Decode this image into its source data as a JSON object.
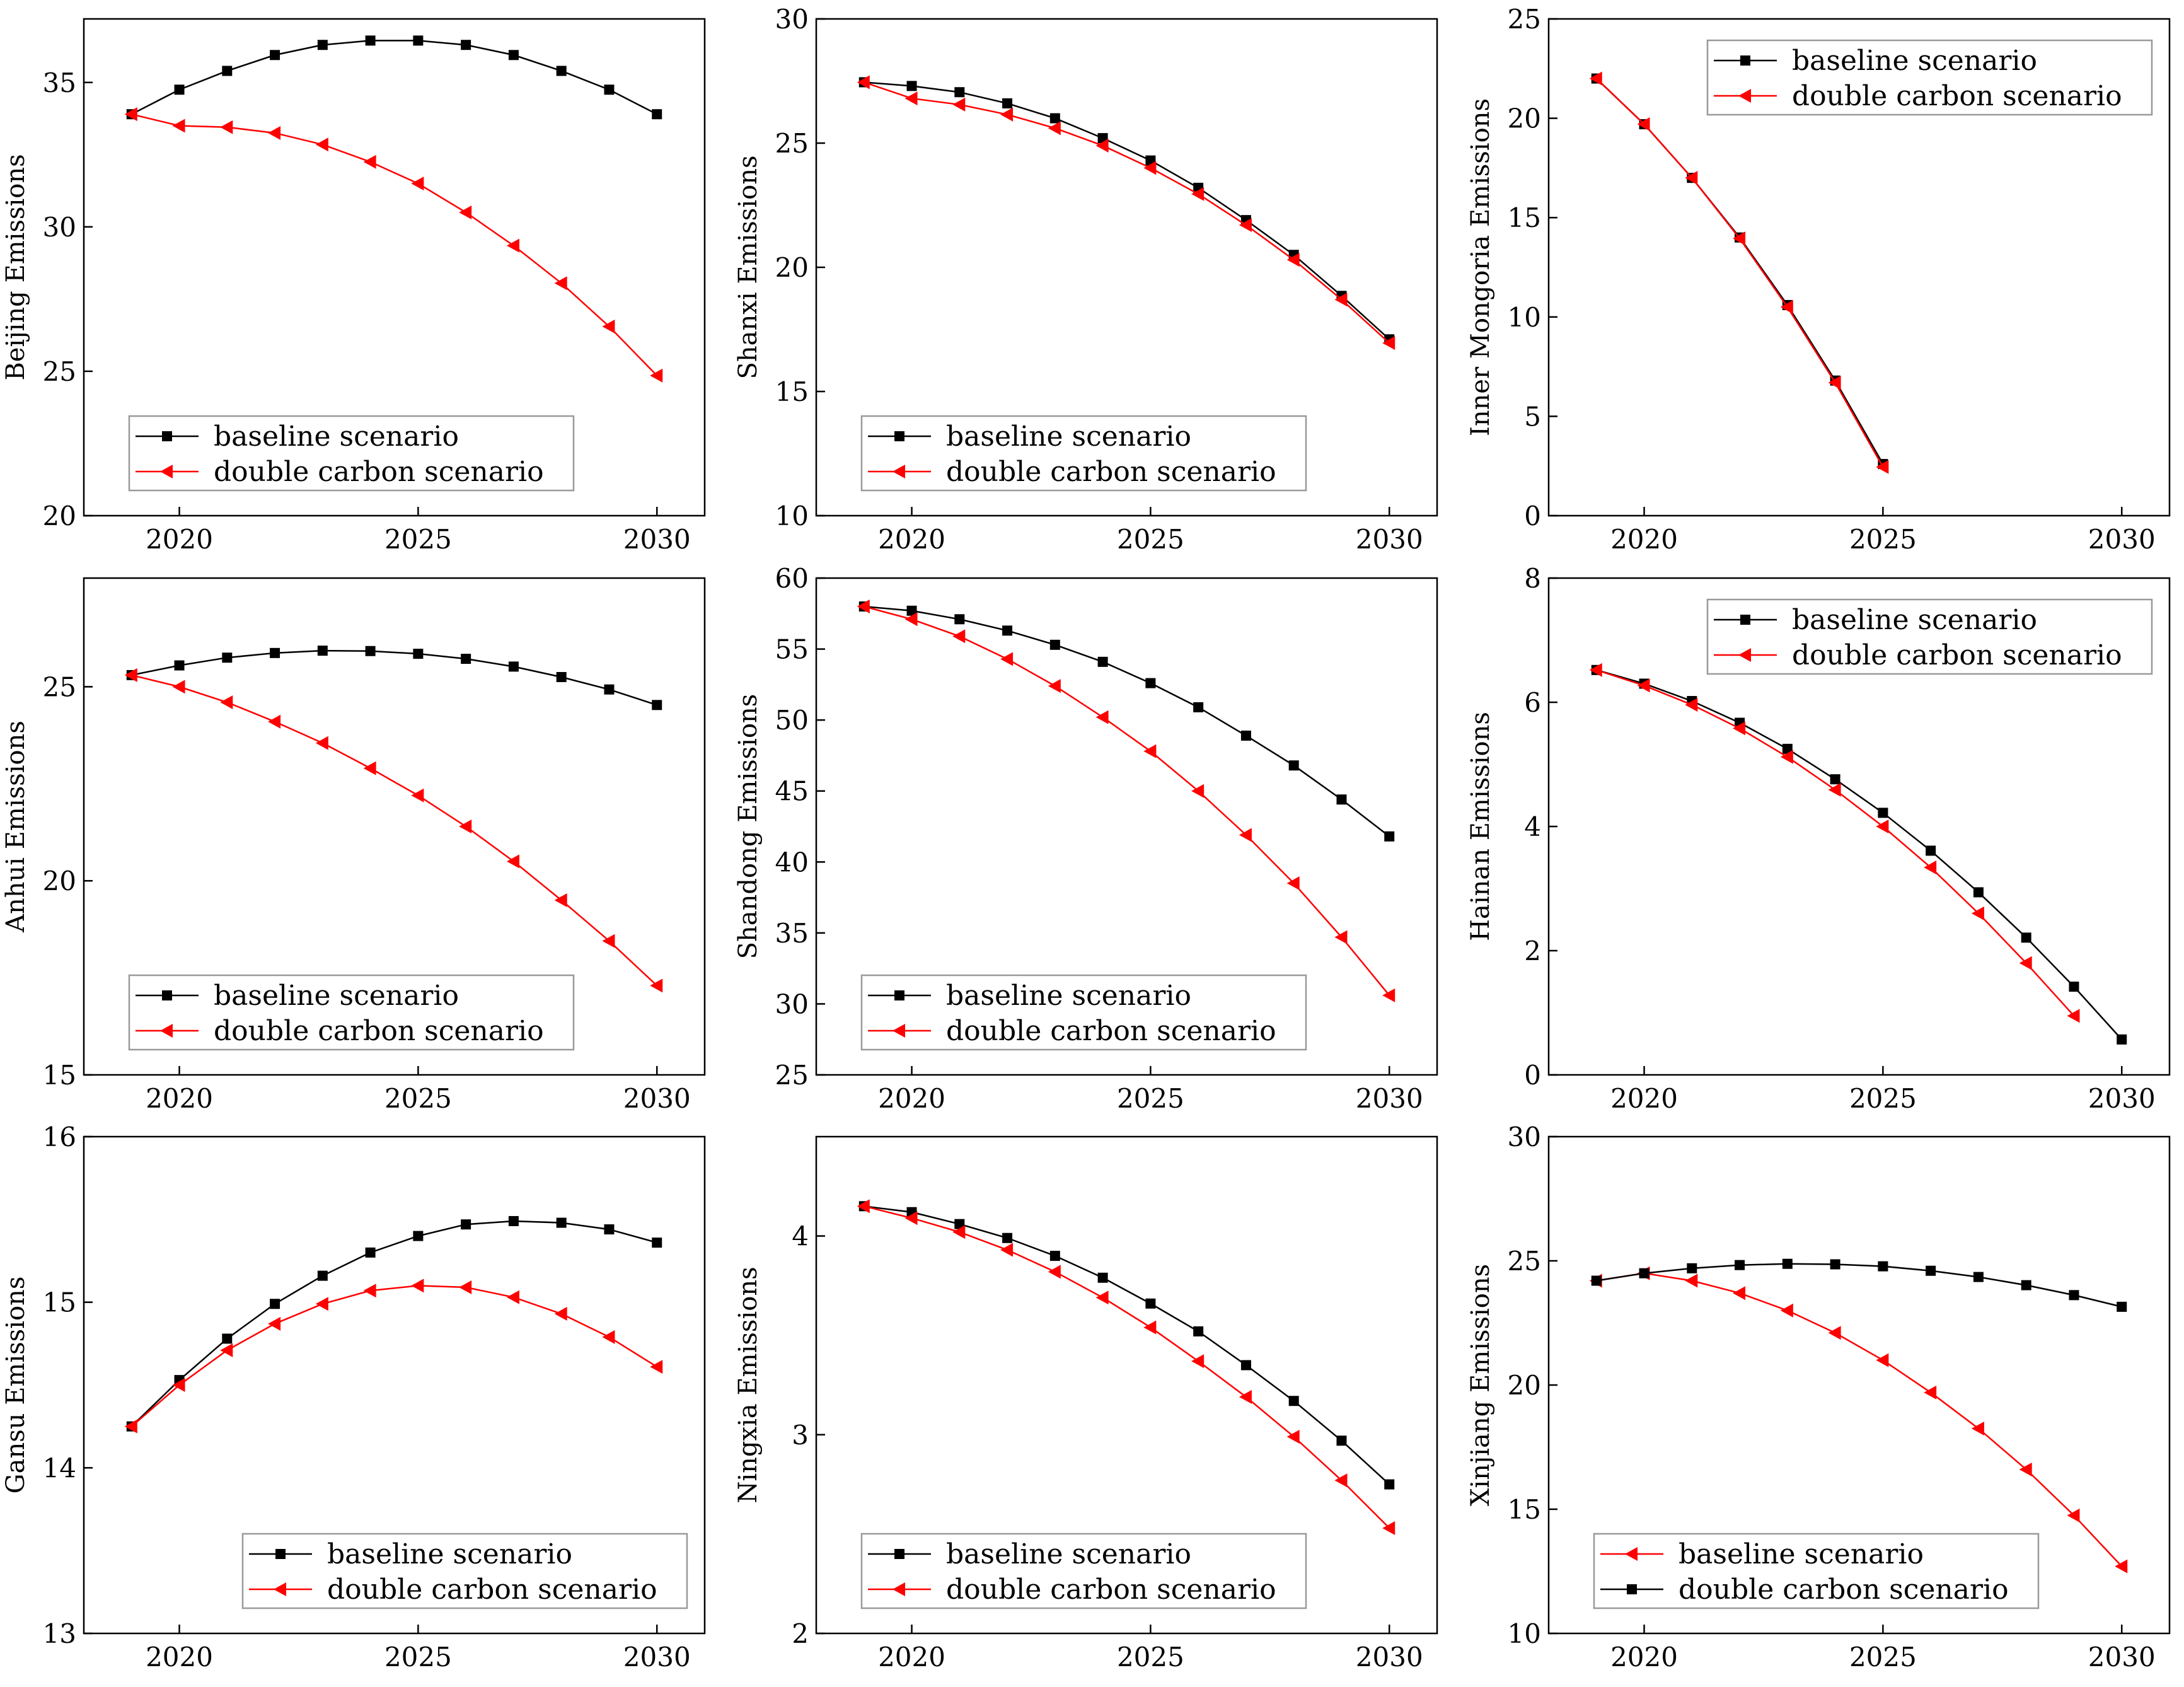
{
  "colors": {
    "black_series": "#000000",
    "red_series": "#ff0000",
    "axis": "#000000",
    "legend_border": "#999999"
  },
  "chart_data": [
    {
      "type": "line",
      "ylabel": "Beijing Emissions",
      "ylim": [
        20,
        37.2
      ],
      "yticks": [
        20,
        25,
        30,
        35
      ],
      "xlim": [
        2018,
        2031
      ],
      "xticks": [
        2020,
        2025,
        2030
      ],
      "legend": "bottom-left",
      "series": [
        {
          "name": "baseline scenario",
          "color": "#000000",
          "marker": "square",
          "x": [
            2019,
            2020,
            2021,
            2022,
            2023,
            2024,
            2025,
            2026,
            2027,
            2028,
            2029,
            2030
          ],
          "y": [
            33.9,
            34.75,
            35.4,
            35.95,
            36.3,
            36.45,
            36.45,
            36.3,
            35.95,
            35.4,
            34.75,
            33.9
          ]
        },
        {
          "name": "double carbon scenario",
          "color": "#ff0000",
          "marker": "triangle-left",
          "x": [
            2019,
            2020,
            2021,
            2022,
            2023,
            2024,
            2025,
            2026,
            2027,
            2028,
            2029,
            2030
          ],
          "y": [
            33.9,
            33.5,
            33.45,
            33.25,
            32.85,
            32.25,
            31.5,
            30.5,
            29.35,
            28.05,
            26.55,
            24.85
          ]
        }
      ]
    },
    {
      "type": "line",
      "ylabel": "Shanxi Emissions",
      "ylim": [
        10,
        30
      ],
      "yticks": [
        10,
        15,
        20,
        25,
        30
      ],
      "xlim": [
        2018,
        2031
      ],
      "xticks": [
        2020,
        2025,
        2030
      ],
      "legend": "bottom-left",
      "series": [
        {
          "name": "baseline scenario",
          "color": "#000000",
          "marker": "square",
          "x": [
            2019,
            2020,
            2021,
            2022,
            2023,
            2024,
            2025,
            2026,
            2027,
            2028,
            2029,
            2030
          ],
          "y": [
            27.45,
            27.3,
            27.05,
            26.6,
            26.0,
            25.2,
            24.3,
            23.2,
            21.9,
            20.5,
            18.85,
            17.1
          ]
        },
        {
          "name": "double carbon scenario",
          "color": "#ff0000",
          "marker": "triangle-left",
          "x": [
            2019,
            2020,
            2021,
            2022,
            2023,
            2024,
            2025,
            2026,
            2027,
            2028,
            2029,
            2030
          ],
          "y": [
            27.45,
            26.8,
            26.55,
            26.15,
            25.6,
            24.9,
            24.0,
            22.95,
            21.7,
            20.3,
            18.7,
            16.95
          ]
        }
      ]
    },
    {
      "type": "line",
      "ylabel": "Inner Mongoria Emissions",
      "ylim": [
        0,
        25
      ],
      "yticks": [
        0,
        5,
        10,
        15,
        20,
        25
      ],
      "xlim": [
        2018,
        2031
      ],
      "xticks": [
        2020,
        2025,
        2030
      ],
      "legend": "top-right",
      "series": [
        {
          "name": "baseline scenario",
          "color": "#000000",
          "marker": "square",
          "x": [
            2019,
            2020,
            2021,
            2022,
            2023,
            2024,
            2025
          ],
          "y": [
            22.0,
            19.7,
            17.0,
            14.0,
            10.6,
            6.8,
            2.6
          ]
        },
        {
          "name": "double carbon scenario",
          "color": "#ff0000",
          "marker": "triangle-left",
          "x": [
            2019,
            2020,
            2021,
            2022,
            2023,
            2024,
            2025
          ],
          "y": [
            22.0,
            19.7,
            17.0,
            13.95,
            10.5,
            6.7,
            2.45
          ]
        }
      ]
    },
    {
      "type": "line",
      "ylabel": "Anhui Emissions",
      "ylim": [
        15,
        27.8
      ],
      "yticks": [
        15,
        20,
        25
      ],
      "xlim": [
        2018,
        2031
      ],
      "xticks": [
        2020,
        2025,
        2030
      ],
      "legend": "bottom-left",
      "series": [
        {
          "name": "baseline scenario",
          "color": "#000000",
          "marker": "square",
          "x": [
            2019,
            2020,
            2021,
            2022,
            2023,
            2024,
            2025,
            2026,
            2027,
            2028,
            2029,
            2030
          ],
          "y": [
            25.3,
            25.55,
            25.75,
            25.87,
            25.93,
            25.92,
            25.85,
            25.72,
            25.52,
            25.25,
            24.93,
            24.53
          ]
        },
        {
          "name": "double carbon scenario",
          "color": "#ff0000",
          "marker": "triangle-left",
          "x": [
            2019,
            2020,
            2021,
            2022,
            2023,
            2024,
            2025,
            2026,
            2027,
            2028,
            2029,
            2030
          ],
          "y": [
            25.3,
            25.0,
            24.6,
            24.1,
            23.55,
            22.9,
            22.2,
            21.4,
            20.5,
            19.5,
            18.45,
            17.3
          ]
        }
      ]
    },
    {
      "type": "line",
      "ylabel": "Shandong Emissions",
      "ylim": [
        25,
        60
      ],
      "yticks": [
        25,
        30,
        35,
        40,
        45,
        50,
        55,
        60
      ],
      "xlim": [
        2018,
        2031
      ],
      "xticks": [
        2020,
        2025,
        2030
      ],
      "legend": "bottom-left",
      "series": [
        {
          "name": "baseline scenario",
          "color": "#000000",
          "marker": "square",
          "x": [
            2019,
            2020,
            2021,
            2022,
            2023,
            2024,
            2025,
            2026,
            2027,
            2028,
            2029,
            2030
          ],
          "y": [
            58.0,
            57.7,
            57.1,
            56.3,
            55.3,
            54.1,
            52.6,
            50.9,
            48.9,
            46.8,
            44.4,
            41.8
          ]
        },
        {
          "name": "double carbon scenario",
          "color": "#ff0000",
          "marker": "triangle-left",
          "x": [
            2019,
            2020,
            2021,
            2022,
            2023,
            2024,
            2025,
            2026,
            2027,
            2028,
            2029,
            2030
          ],
          "y": [
            58.0,
            57.1,
            55.9,
            54.3,
            52.4,
            50.2,
            47.8,
            45.0,
            41.9,
            38.5,
            34.7,
            30.6
          ]
        }
      ]
    },
    {
      "type": "line",
      "ylabel": "Hainan Emissions",
      "ylim": [
        0,
        8
      ],
      "yticks": [
        0,
        2,
        4,
        6,
        8
      ],
      "xlim": [
        2018,
        2031
      ],
      "xticks": [
        2020,
        2025,
        2030
      ],
      "legend": "top-right",
      "series": [
        {
          "name": "baseline scenario",
          "color": "#000000",
          "marker": "square",
          "x": [
            2019,
            2020,
            2021,
            2022,
            2023,
            2024,
            2025,
            2026,
            2027,
            2028,
            2029,
            2030
          ],
          "y": [
            6.52,
            6.3,
            6.02,
            5.67,
            5.25,
            4.76,
            4.22,
            3.61,
            2.94,
            2.21,
            1.42,
            0.57
          ]
        },
        {
          "name": "double carbon scenario",
          "color": "#ff0000",
          "marker": "triangle-left",
          "x": [
            2019,
            2020,
            2021,
            2022,
            2023,
            2024,
            2025,
            2026,
            2027,
            2028,
            2029
          ],
          "y": [
            6.52,
            6.27,
            5.96,
            5.58,
            5.12,
            4.59,
            4.0,
            3.34,
            2.6,
            1.8,
            0.95
          ]
        }
      ]
    },
    {
      "type": "line",
      "ylabel": "Gansu Emissions",
      "ylim": [
        13,
        16
      ],
      "yticks": [
        13,
        14,
        15,
        16
      ],
      "xlim": [
        2018,
        2031
      ],
      "xticks": [
        2020,
        2025,
        2030
      ],
      "legend": "bottom-right",
      "series": [
        {
          "name": "baseline scenario",
          "color": "#000000",
          "marker": "square",
          "x": [
            2019,
            2020,
            2021,
            2022,
            2023,
            2024,
            2025,
            2026,
            2027,
            2028,
            2029,
            2030
          ],
          "y": [
            14.25,
            14.53,
            14.78,
            14.99,
            15.16,
            15.3,
            15.4,
            15.47,
            15.49,
            15.48,
            15.44,
            15.36
          ]
        },
        {
          "name": "double carbon scenario",
          "color": "#ff0000",
          "marker": "triangle-left",
          "x": [
            2019,
            2020,
            2021,
            2022,
            2023,
            2024,
            2025,
            2026,
            2027,
            2028,
            2029,
            2030
          ],
          "y": [
            14.25,
            14.5,
            14.71,
            14.87,
            14.99,
            15.07,
            15.1,
            15.09,
            15.03,
            14.93,
            14.79,
            14.61
          ]
        }
      ]
    },
    {
      "type": "line",
      "ylabel": "Ningxia Emissions",
      "ylim": [
        2,
        4.5
      ],
      "yticks": [
        2,
        3,
        4
      ],
      "xlim": [
        2018,
        2031
      ],
      "xticks": [
        2020,
        2025,
        2030
      ],
      "legend": "bottom-left",
      "series": [
        {
          "name": "baseline scenario",
          "color": "#000000",
          "marker": "square",
          "x": [
            2019,
            2020,
            2021,
            2022,
            2023,
            2024,
            2025,
            2026,
            2027,
            2028,
            2029,
            2030
          ],
          "y": [
            4.15,
            4.12,
            4.06,
            3.99,
            3.9,
            3.79,
            3.66,
            3.52,
            3.35,
            3.17,
            2.97,
            2.75
          ]
        },
        {
          "name": "double carbon scenario",
          "color": "#ff0000",
          "marker": "triangle-left",
          "x": [
            2019,
            2020,
            2021,
            2022,
            2023,
            2024,
            2025,
            2026,
            2027,
            2028,
            2029,
            2030
          ],
          "y": [
            4.15,
            4.09,
            4.02,
            3.93,
            3.82,
            3.69,
            3.54,
            3.37,
            3.19,
            2.99,
            2.77,
            2.53
          ]
        }
      ]
    },
    {
      "type": "line",
      "ylabel": "Xinjiang Emissions",
      "ylim": [
        10,
        30
      ],
      "yticks": [
        10,
        15,
        20,
        25,
        30
      ],
      "xlim": [
        2018,
        2031
      ],
      "xticks": [
        2020,
        2025,
        2030
      ],
      "legend": "bottom-left",
      "series": [
        {
          "name": "baseline scenario",
          "color": "#ff0000",
          "marker": "triangle-left",
          "x": [
            2019,
            2020,
            2021,
            2022,
            2023,
            2024,
            2025,
            2026,
            2027,
            2028,
            2029,
            2030
          ],
          "y": [
            24.2,
            24.5,
            24.2,
            23.7,
            23.0,
            22.1,
            21.0,
            19.7,
            18.25,
            16.6,
            14.75,
            12.7
          ]
        },
        {
          "name": "double carbon scenario",
          "color": "#000000",
          "marker": "square",
          "x": [
            2019,
            2020,
            2021,
            2022,
            2023,
            2024,
            2025,
            2026,
            2027,
            2028,
            2029,
            2030
          ],
          "y": [
            24.2,
            24.5,
            24.7,
            24.83,
            24.88,
            24.86,
            24.78,
            24.6,
            24.35,
            24.02,
            23.62,
            23.15
          ]
        }
      ]
    }
  ]
}
